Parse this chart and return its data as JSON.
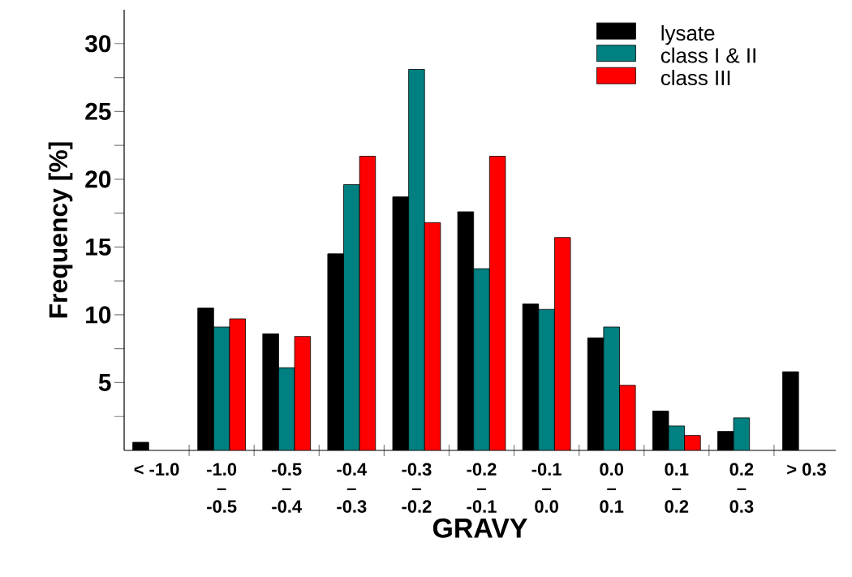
{
  "chart_data": {
    "type": "bar",
    "xlabel": "GRAVY",
    "ylabel": "Frequency [%]",
    "categories": [
      "< -1.0",
      "-1.0\n–\n-0.5",
      "-0.5\n–\n-0.4",
      "-0.4\n–\n-0.3",
      "-0.3\n–\n-0.2",
      "-0.2\n–\n-0.1",
      "-0.1\n–\n0.0",
      "0.0\n–\n0.1",
      "0.1\n–\n0.2",
      "0.2\n–\n0.3",
      "> 0.3"
    ],
    "series": [
      {
        "name": "lysate",
        "color": "#000000",
        "values": [
          0.6,
          10.5,
          8.6,
          14.5,
          18.7,
          17.6,
          10.8,
          8.3,
          2.9,
          1.4,
          5.8
        ]
      },
      {
        "name": "class I & II",
        "color": "#008080",
        "values": [
          null,
          9.1,
          6.1,
          19.6,
          28.1,
          13.4,
          10.4,
          9.1,
          1.8,
          2.4,
          null
        ]
      },
      {
        "name": "class III",
        "color": "#ff0000",
        "values": [
          null,
          9.7,
          8.4,
          21.7,
          16.8,
          21.7,
          15.7,
          4.8,
          1.1,
          null,
          null
        ]
      }
    ],
    "ylim": [
      0,
      32.5
    ],
    "yticks": [
      {
        "value": 2.5,
        "label": null
      },
      5,
      {
        "value": 7.5,
        "label": null
      },
      10,
      {
        "value": 12.5,
        "label": null
      },
      15,
      {
        "value": 17.5,
        "label": null
      },
      20,
      {
        "value": 22.5,
        "label": null
      },
      25,
      {
        "value": 27.5,
        "label": null
      },
      30
    ],
    "legend": "top right",
    "grid": false
  }
}
